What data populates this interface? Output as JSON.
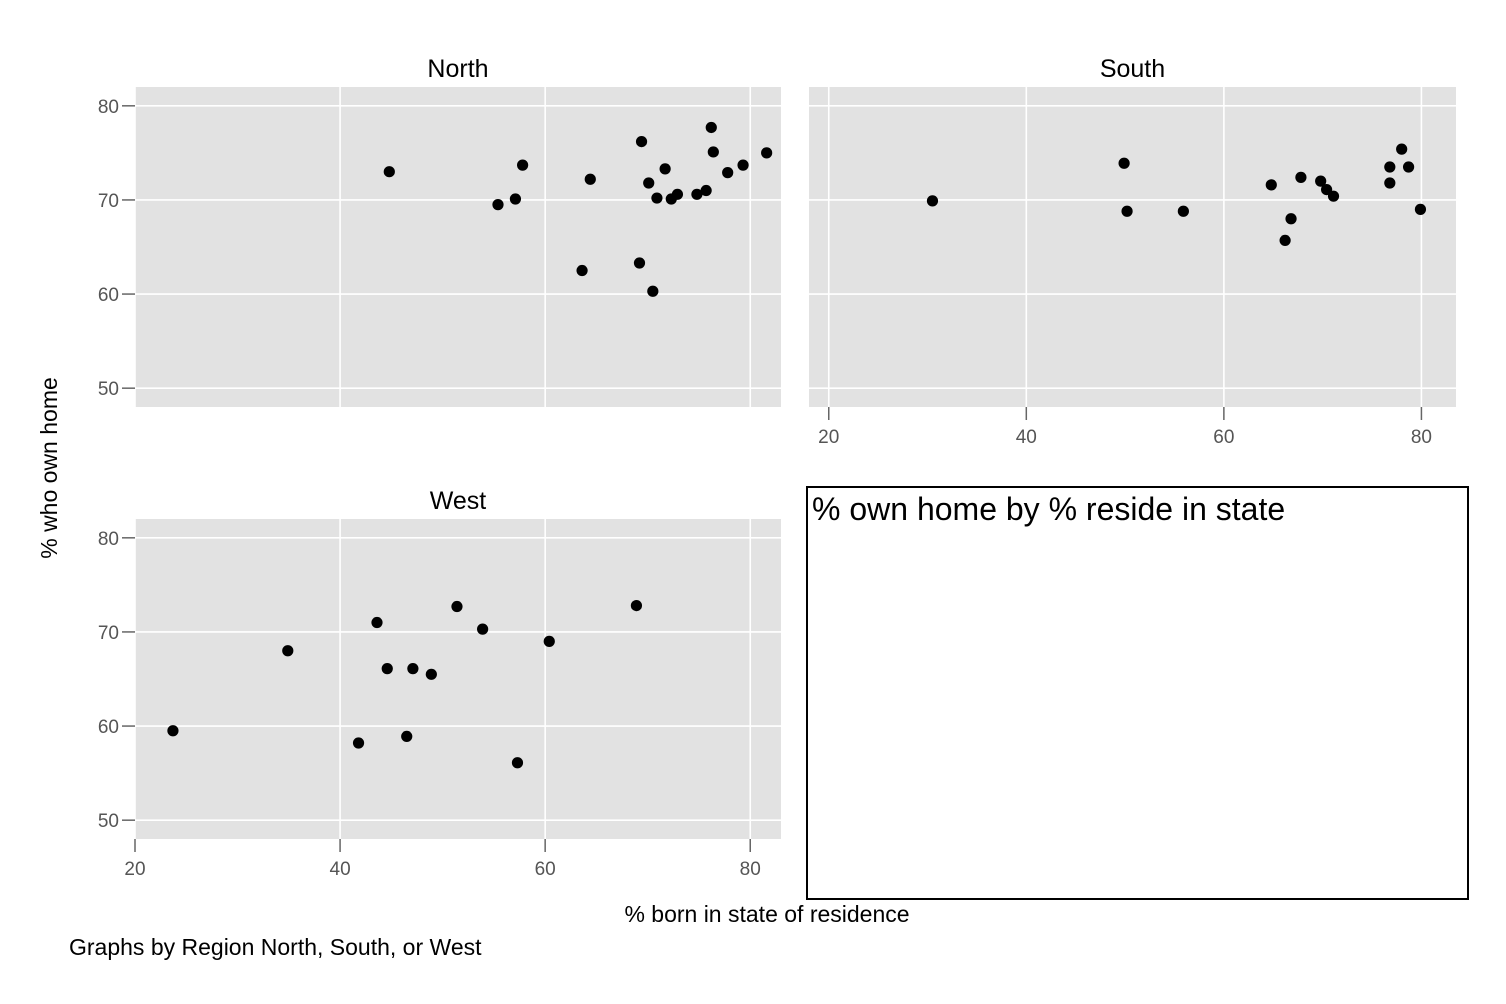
{
  "chart_data": [
    {
      "type": "scatter",
      "title": "North",
      "xlim": [
        20,
        83
      ],
      "ylim": [
        48,
        82
      ],
      "yticks": [
        50,
        60,
        70,
        80
      ],
      "xticks": [],
      "points": [
        [
          44.8,
          73.0
        ],
        [
          55.4,
          69.5
        ],
        [
          57.1,
          70.1
        ],
        [
          57.8,
          73.7
        ],
        [
          63.6,
          62.5
        ],
        [
          64.4,
          72.2
        ],
        [
          69.2,
          63.3
        ],
        [
          69.4,
          76.2
        ],
        [
          70.1,
          71.8
        ],
        [
          70.5,
          60.3
        ],
        [
          70.9,
          70.2
        ],
        [
          71.7,
          73.3
        ],
        [
          72.3,
          70.1
        ],
        [
          72.9,
          70.6
        ],
        [
          74.8,
          70.6
        ],
        [
          75.7,
          71.0
        ],
        [
          76.2,
          77.7
        ],
        [
          76.4,
          75.1
        ],
        [
          77.8,
          72.9
        ],
        [
          79.3,
          73.7
        ],
        [
          81.6,
          75.0
        ]
      ]
    },
    {
      "type": "scatter",
      "title": "South",
      "xlim": [
        18,
        83.5
      ],
      "ylim": [
        48,
        82
      ],
      "yticks": [],
      "xticks": [
        20,
        40,
        60,
        80
      ],
      "points": [
        [
          30.5,
          69.9
        ],
        [
          49.9,
          73.9
        ],
        [
          50.2,
          68.8
        ],
        [
          55.9,
          68.8
        ],
        [
          64.8,
          71.6
        ],
        [
          66.2,
          65.7
        ],
        [
          66.8,
          68.0
        ],
        [
          67.8,
          72.4
        ],
        [
          69.8,
          72.0
        ],
        [
          70.4,
          71.1
        ],
        [
          71.1,
          70.4
        ],
        [
          76.8,
          71.8
        ],
        [
          76.8,
          73.5
        ],
        [
          78.0,
          75.4
        ],
        [
          78.7,
          73.5
        ],
        [
          79.9,
          69.0
        ]
      ]
    },
    {
      "type": "scatter",
      "title": "West",
      "xlim": [
        20,
        83
      ],
      "ylim": [
        48,
        82
      ],
      "yticks": [
        50,
        60,
        70,
        80
      ],
      "xticks": [
        20,
        40,
        60,
        80
      ],
      "points": [
        [
          23.7,
          59.5
        ],
        [
          34.9,
          68.0
        ],
        [
          41.8,
          58.2
        ],
        [
          43.6,
          71.0
        ],
        [
          44.6,
          66.1
        ],
        [
          46.5,
          58.9
        ],
        [
          47.1,
          66.1
        ],
        [
          48.9,
          65.5
        ],
        [
          51.4,
          72.7
        ],
        [
          53.9,
          70.3
        ],
        [
          57.3,
          56.1
        ],
        [
          60.4,
          69.0
        ],
        [
          68.9,
          72.8
        ]
      ]
    }
  ],
  "labels": {
    "ylabel": "% who own home",
    "xlabel": "% born in state of residence",
    "note": "Graphs by Region North, South, or West",
    "box_title": "% own home by % reside in state"
  },
  "colors": {
    "panel_bg": "#e2e2e2",
    "grid": "#ffffff",
    "point": "#000000"
  }
}
